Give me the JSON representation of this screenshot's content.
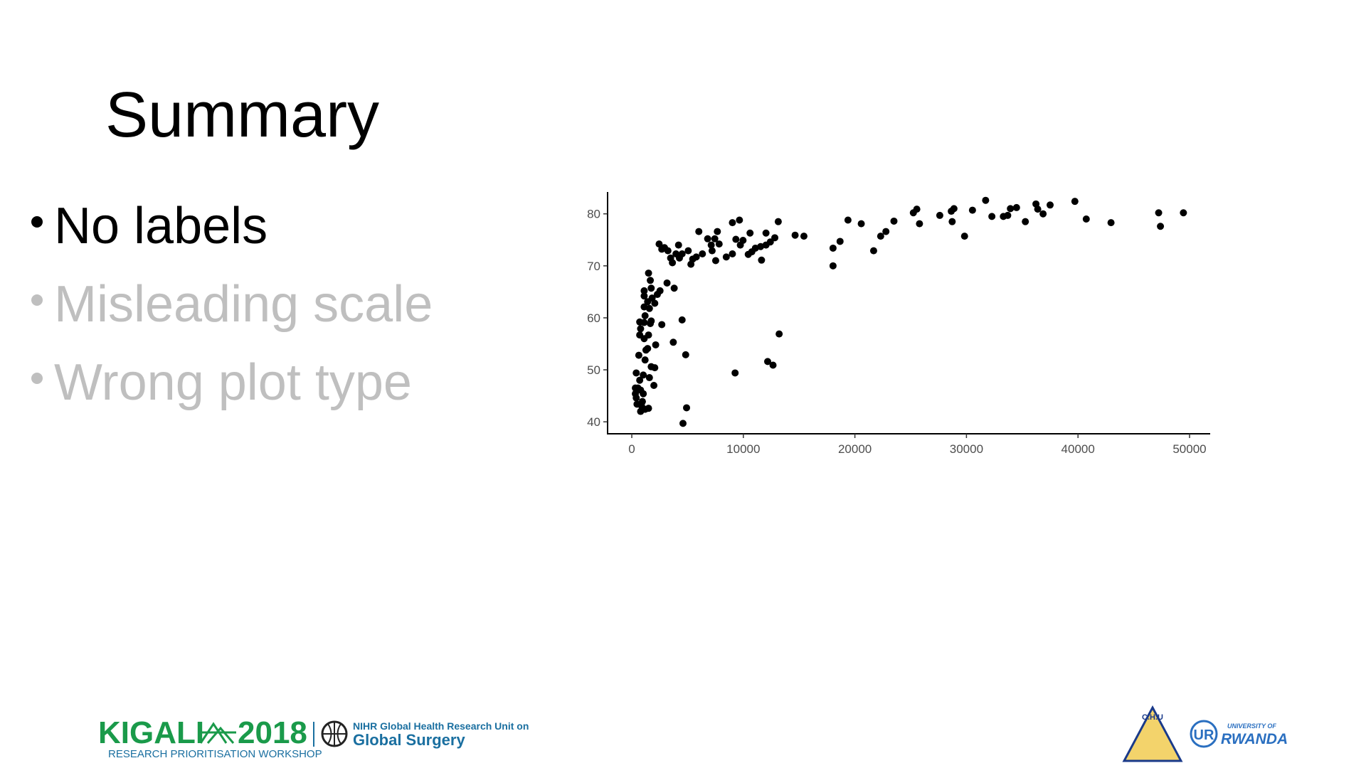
{
  "slide": {
    "title": "Summary",
    "bullets": [
      "No labels",
      "Misleading scale",
      "Wrong plot type"
    ]
  },
  "chart_data": {
    "type": "scatter",
    "color": "#000000",
    "x": [
      49450,
      47230,
      47390,
      42960,
      40740,
      39720,
      37500,
      36870,
      36390,
      36230,
      35280,
      34490,
      33940,
      33700,
      33310,
      32280,
      31720,
      30540,
      29830,
      28880,
      28640,
      28720,
      27610,
      25790,
      25550,
      25240,
      23500,
      22780,
      22310,
      21680,
      20570,
      19380,
      18670,
      18040,
      18040,
      15430,
      14640,
      13130,
      13210,
      12660,
      12180,
      12820,
      12420,
      12030,
      12030,
      11550,
      11630,
      11080,
      10760,
      10440,
      10600,
      9970,
      9730,
      9650,
      9330,
      9020,
      9260,
      9020,
      8470,
      7830,
      7670,
      7520,
      7440,
      7200,
      7120,
      6800,
      6330,
      6010,
      5780,
      5460,
      5300,
      5060,
      4510,
      4830,
      4910,
      4590,
      4510,
      4270,
      4190,
      3960,
      3800,
      3720,
      3640,
      3480,
      3240,
      2930,
      2690,
      2450,
      3160,
      2530,
      2290,
      2060,
      2690,
      2140,
      2060,
      1740,
      1980,
      1740,
      1820,
      1660,
      1660,
      1740,
      1580,
      1500,
      1420,
      1500,
      1420,
      1580,
      1500,
      1190,
      1110,
      1110,
      1110,
      1190,
      1110,
      1110,
      1270,
      1190,
      1030,
      1030,
      950,
      790,
      870,
      790,
      710,
      630,
      710,
      710,
      790,
      550,
      470,
      400,
      320,
      320,
      400
    ],
    "values": [
      80.2,
      80.2,
      77.6,
      78.3,
      79.0,
      82.4,
      81.7,
      80.0,
      80.9,
      81.9,
      78.5,
      81.2,
      81.0,
      79.7,
      79.5,
      79.5,
      82.6,
      80.7,
      75.7,
      81.0,
      80.5,
      78.5,
      79.7,
      78.1,
      80.9,
      80.2,
      78.6,
      76.6,
      75.7,
      72.9,
      78.1,
      78.8,
      74.7,
      73.4,
      70.0,
      75.7,
      75.9,
      78.5,
      56.9,
      50.9,
      51.6,
      75.4,
      74.6,
      74.0,
      76.3,
      73.7,
      71.1,
      73.4,
      72.7,
      72.2,
      76.3,
      74.9,
      74.0,
      78.8,
      75.1,
      78.3,
      49.4,
      72.3,
      71.7,
      74.2,
      76.6,
      71.0,
      75.2,
      72.9,
      74.0,
      75.2,
      72.3,
      76.6,
      71.7,
      71.3,
      70.3,
      72.9,
      72.3,
      52.9,
      42.7,
      39.7,
      59.6,
      71.5,
      74.0,
      72.3,
      65.7,
      55.3,
      70.6,
      71.5,
      72.9,
      73.5,
      73.2,
      74.2,
      66.7,
      65.2,
      64.5,
      62.8,
      58.7,
      54.8,
      50.4,
      50.6,
      47.0,
      65.7,
      63.8,
      67.2,
      58.9,
      59.4,
      61.8,
      68.6,
      63.1,
      56.7,
      54.1,
      48.5,
      42.6,
      42.4,
      65.2,
      64.2,
      62.1,
      60.4,
      59.1,
      56.0,
      53.8,
      51.9,
      49.0,
      45.4,
      43.9,
      42.0,
      43.1,
      46.1,
      48.0,
      52.8,
      56.7,
      59.2,
      57.9,
      46.5,
      43.4,
      49.4,
      45.4,
      46.5,
      44.6
    ],
    "xlim": [
      -2170,
      51850
    ],
    "ylim": [
      37.7,
      84.2
    ],
    "xticks": [
      0,
      10000,
      20000,
      30000,
      40000,
      50000
    ],
    "yticks": [
      40,
      50,
      60,
      70,
      80
    ],
    "grid": false
  },
  "footer": {
    "kigali": "KIGALI",
    "year": "2018",
    "workshop": "RESEARCH PRIORITISATION WORKSHOP",
    "nihr": "NIHR Global Health Research Unit on",
    "unit": "Global Surgery",
    "chu": "C.H.U",
    "university": "UNIVERSITY OF",
    "rwanda": "RWANDA"
  }
}
